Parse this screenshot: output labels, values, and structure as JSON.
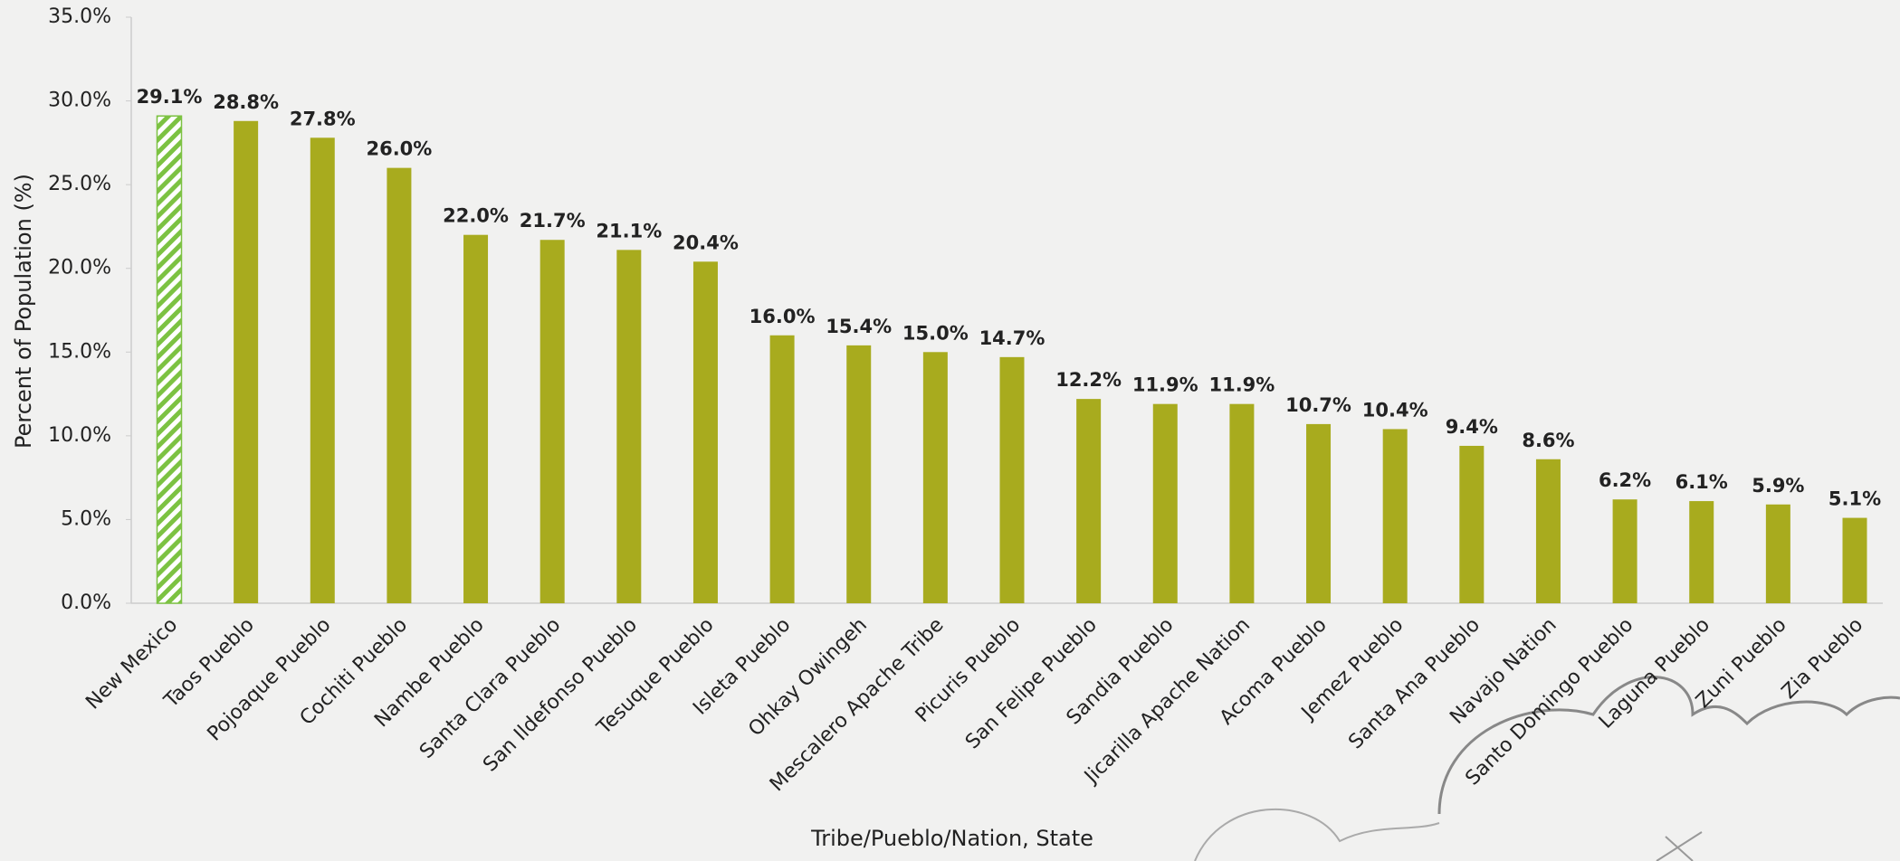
{
  "chart_data": {
    "type": "bar",
    "x_label": "Tribe/Pueblo/Nation, State",
    "y_label": "Percent of Population (%)",
    "categories": [
      "New Mexico",
      "Taos Pueblo",
      "Pojoaque Pueblo",
      "Cochiti Pueblo",
      "Nambe Pueblo",
      "Santa Clara Pueblo",
      "San Ildefonso Pueblo",
      "Tesuque Pueblo",
      "Isleta Pueblo",
      "Ohkay Owingeh",
      "Mescalero Apache Tribe",
      "Picuris Pueblo",
      "San Felipe Pueblo",
      "Sandia Pueblo",
      "Jicarilla Apache Nation",
      "Acoma Pueblo",
      "Jemez Pueblo",
      "Santa Ana Pueblo",
      "Navajo Nation",
      "Santo Domingo Pueblo",
      "Laguna Pueblo",
      "Zuni Pueblo",
      "Zia Pueblo"
    ],
    "values": [
      29.1,
      28.8,
      27.8,
      26.0,
      22.0,
      21.7,
      21.1,
      20.4,
      16.0,
      15.4,
      15.0,
      14.7,
      12.2,
      11.9,
      11.9,
      10.7,
      10.4,
      9.4,
      8.6,
      6.2,
      6.1,
      5.9,
      5.1
    ],
    "value_labels": [
      "29.1%",
      "28.8%",
      "27.8%",
      "26.0%",
      "22.0%",
      "21.7%",
      "21.1%",
      "20.4%",
      "16.0%",
      "15.4%",
      "15.0%",
      "14.7%",
      "12.2%",
      "11.9%",
      "11.9%",
      "10.7%",
      "10.4%",
      "9.4%",
      "8.6%",
      "6.2%",
      "6.1%",
      "5.9%",
      "5.1%"
    ],
    "color": "#a8ab1e",
    "hatched": [
      "New Mexico"
    ],
    "hatch_color": "#7cc242",
    "ylim": [
      0,
      35
    ],
    "yticks": [
      {
        "value": 0,
        "label": "0.0%"
      },
      {
        "value": 5,
        "label": "5.0%"
      },
      {
        "value": 10,
        "label": "10.0%"
      },
      {
        "value": 15,
        "label": "15.0%"
      },
      {
        "value": 20,
        "label": "20.0%"
      },
      {
        "value": 25,
        "label": "25.0%"
      },
      {
        "value": 30,
        "label": "30.0%"
      },
      {
        "value": 35,
        "label": "35.0%"
      }
    ],
    "grid": false
  }
}
